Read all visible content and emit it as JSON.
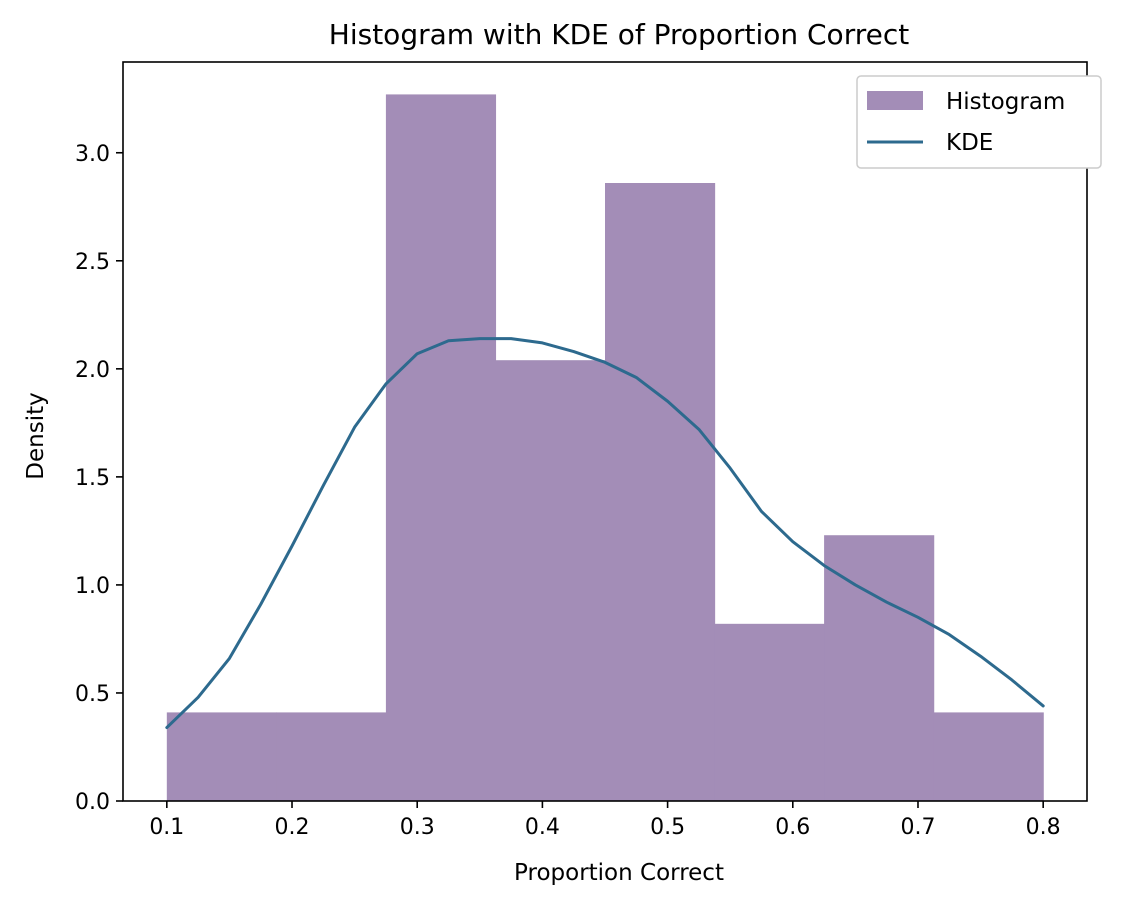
{
  "chart_data": {
    "type": "bar",
    "title": "Histogram with KDE of Proportion Correct",
    "xlabel": "Proportion Correct",
    "ylabel": "Density",
    "xlim": [
      0.065,
      0.835
    ],
    "ylim": [
      0.0,
      3.42
    ],
    "x_ticks": [
      0.1,
      0.2,
      0.3,
      0.4,
      0.5,
      0.6,
      0.7,
      0.8
    ],
    "y_ticks": [
      0.0,
      0.5,
      1.0,
      1.5,
      2.0,
      2.5,
      3.0
    ],
    "grid": false,
    "legend_position": "top-right",
    "series": [
      {
        "name": "Histogram",
        "type": "histogram",
        "color": "#a38db7",
        "bin_edges": [
          0.1,
          0.1875,
          0.275,
          0.3625,
          0.45,
          0.5375,
          0.625,
          0.7125,
          0.8
        ],
        "values": [
          0.41,
          0.41,
          3.27,
          2.04,
          2.86,
          0.82,
          1.23,
          0.41
        ]
      },
      {
        "name": "KDE",
        "type": "line",
        "color": "#2d6a8e",
        "x": [
          0.1,
          0.125,
          0.15,
          0.175,
          0.2,
          0.225,
          0.25,
          0.275,
          0.3,
          0.325,
          0.35,
          0.375,
          0.4,
          0.425,
          0.45,
          0.475,
          0.5,
          0.525,
          0.55,
          0.575,
          0.6,
          0.625,
          0.65,
          0.675,
          0.7,
          0.725,
          0.75,
          0.775,
          0.8
        ],
        "y": [
          0.34,
          0.48,
          0.66,
          0.91,
          1.18,
          1.46,
          1.73,
          1.93,
          2.07,
          2.13,
          2.14,
          2.14,
          2.12,
          2.08,
          2.03,
          1.96,
          1.85,
          1.72,
          1.54,
          1.34,
          1.2,
          1.09,
          1.0,
          0.92,
          0.85,
          0.77,
          0.67,
          0.56,
          0.44
        ]
      }
    ]
  }
}
